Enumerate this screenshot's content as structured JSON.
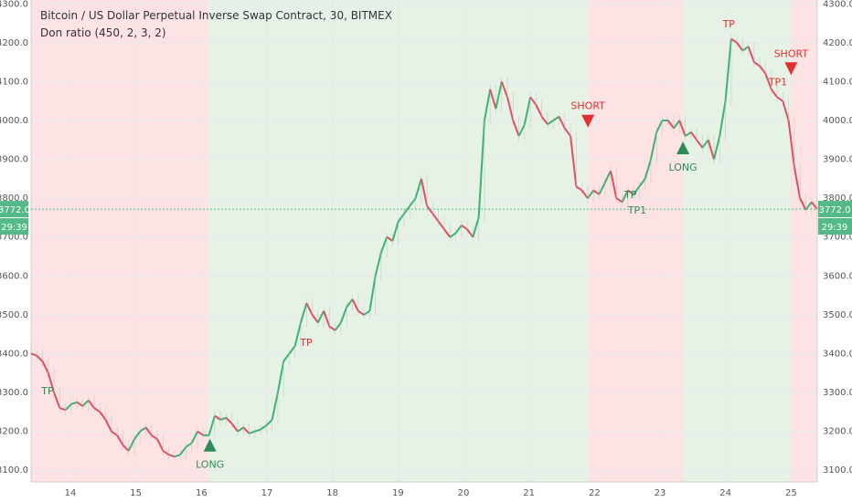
{
  "legend": {
    "title": "Bitcoin / US Dollar Perpetual Inverse Swap Contract, 30, BITMEX",
    "indicator": "Don ratio (450, 2, 3, 2)"
  },
  "chart_data": {
    "type": "line",
    "ylim": [
      3070,
      4310
    ],
    "y_ticks": [
      3100.0,
      3200.0,
      3300.0,
      3400.0,
      3500.0,
      3600.0,
      3700.0,
      3800.0,
      3900.0,
      4000.0,
      4100.0,
      4200.0,
      4300.0
    ],
    "x_ticks": [
      "14",
      "15",
      "16",
      "17",
      "18",
      "19",
      "20",
      "21",
      "22",
      "23",
      "24",
      "25"
    ],
    "series": [
      {
        "values": [
          3400,
          3395,
          3380,
          3350,
          3300,
          3260,
          3255,
          3270,
          3275,
          3265,
          3280,
          3260,
          3250,
          3230,
          3200,
          3190,
          3165,
          3150,
          3180,
          3200,
          3210,
          3190,
          3180,
          3150,
          3140,
          3135,
          3140,
          3160,
          3170,
          3200,
          3190,
          3190,
          3240,
          3230,
          3235,
          3220,
          3200,
          3210,
          3195,
          3200,
          3205,
          3215,
          3230,
          3300,
          3380,
          3400,
          3420,
          3480,
          3530,
          3500,
          3480,
          3510,
          3470,
          3460,
          3480,
          3520,
          3540,
          3510,
          3500,
          3510,
          3600,
          3660,
          3700,
          3690,
          3740,
          3760,
          3780,
          3800,
          3850,
          3780,
          3760,
          3740,
          3720,
          3700,
          3710,
          3730,
          3720,
          3700,
          3750,
          4000,
          4080,
          4030,
          4100,
          4060,
          4000,
          3960,
          3990,
          4060,
          4040,
          4010,
          3990,
          4000,
          4010,
          3980,
          3960,
          3830,
          3820,
          3800,
          3820,
          3810,
          3840,
          3870,
          3800,
          3790,
          3820,
          3810,
          3830,
          3850,
          3900,
          3970,
          4000,
          4000,
          3980,
          4000,
          3960,
          3970,
          3950,
          3930,
          3950,
          3900,
          3960,
          4050,
          4210,
          4200,
          4180,
          4190,
          4150,
          4140,
          4120,
          4080,
          4060,
          4050,
          4000,
          3880,
          3800,
          3770,
          3790,
          3772
        ],
        "x_range": [
          13.4,
          25.4
        ],
        "y_start": 3400,
        "y_end": 3772
      }
    ],
    "price_label": "3772.0",
    "countdown_label": "29:39",
    "background_zones": [
      {
        "from": 13.4,
        "to": 16.1,
        "color": "#fde3e3"
      },
      {
        "from": 16.1,
        "to": 21.9,
        "color": "#e6f2e6"
      },
      {
        "from": 21.9,
        "to": 23.35,
        "color": "#fde3e3"
      },
      {
        "from": 23.35,
        "to": 24.98,
        "color": "#e6f2e6"
      },
      {
        "from": 24.98,
        "to": 25.4,
        "color": "#fde3e3"
      }
    ],
    "annotations": [
      {
        "text": "TP",
        "x": 13.65,
        "y": 3295,
        "color": "#2e8b57"
      },
      {
        "text": "LONG",
        "x": 16.13,
        "y": 3120,
        "color": "#2e8b57",
        "marker": "up"
      },
      {
        "text": "TP",
        "x": 17.6,
        "y": 3420,
        "color": "#e03030"
      },
      {
        "text": "SHORT",
        "x": 21.9,
        "y": 4010,
        "color": "#e03030",
        "marker": "down"
      },
      {
        "text": "TP",
        "x": 22.55,
        "y": 3800,
        "color": "#2e8b57"
      },
      {
        "text": "TP1",
        "x": 22.65,
        "y": 3760,
        "color": "#2e8b57"
      },
      {
        "text": "LONG",
        "x": 23.35,
        "y": 3885,
        "color": "#2e8b57",
        "marker": "up"
      },
      {
        "text": "TP",
        "x": 24.05,
        "y": 4240,
        "color": "#e03030"
      },
      {
        "text": "SHORT",
        "x": 25.0,
        "y": 4145,
        "color": "#e03030",
        "marker": "down"
      },
      {
        "text": "TP1",
        "x": 24.8,
        "y": 4090,
        "color": "#e03030"
      }
    ],
    "colors": {
      "up": "#3cb371",
      "down": "#e05060",
      "axis_bg": "#ffffff",
      "accent": "#53b987"
    }
  }
}
